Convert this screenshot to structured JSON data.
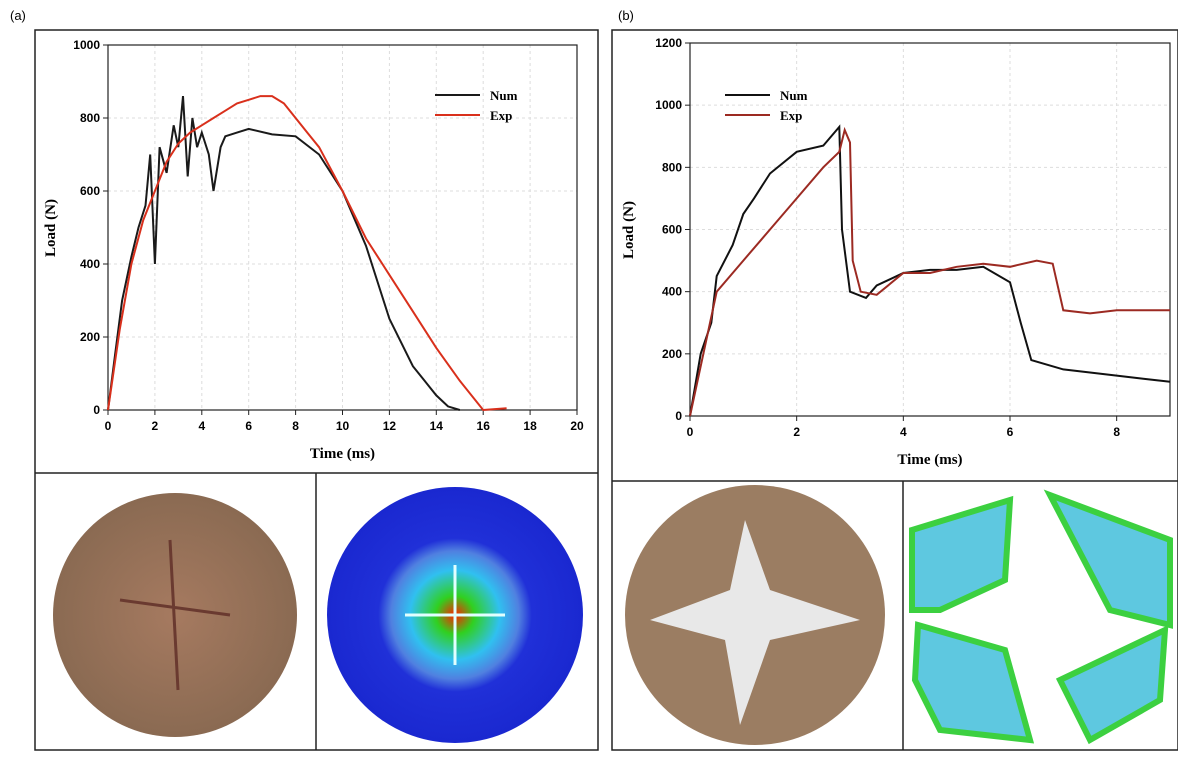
{
  "chart_data": [
    {
      "type": "line",
      "label": "(a)",
      "x_label": "Time (ms)",
      "y_label": "Load (N)",
      "xlim": [
        0,
        20
      ],
      "ylim": [
        0,
        1000
      ],
      "xticks": [
        0,
        2,
        4,
        6,
        8,
        10,
        12,
        14,
        16,
        18,
        20
      ],
      "yticks": [
        0,
        200,
        400,
        600,
        800,
        1000
      ],
      "grid": true,
      "series": [
        {
          "name": "Num",
          "color": "#1a1a1a",
          "x": [
            0,
            0.3,
            0.6,
            1,
            1.3,
            1.6,
            1.8,
            2,
            2.2,
            2.5,
            2.8,
            3,
            3.2,
            3.4,
            3.6,
            3.8,
            4,
            4.3,
            4.5,
            4.8,
            5,
            5.5,
            6,
            7,
            8,
            9,
            10,
            11,
            12,
            13,
            13.5,
            14,
            14.5,
            15
          ],
          "values": [
            0,
            150,
            300,
            420,
            500,
            560,
            700,
            400,
            720,
            650,
            780,
            720,
            860,
            640,
            800,
            720,
            760,
            700,
            600,
            720,
            750,
            760,
            770,
            755,
            750,
            700,
            600,
            450,
            250,
            120,
            80,
            40,
            10,
            0
          ]
        },
        {
          "name": "Exp",
          "color": "#d9301c",
          "x": [
            0,
            0.5,
            1,
            1.5,
            2,
            2.5,
            3,
            3.5,
            4,
            4.5,
            5,
            5.5,
            6,
            6.5,
            7,
            7.5,
            8,
            8.5,
            9,
            10,
            11,
            12,
            13,
            14,
            15,
            16,
            17
          ],
          "values": [
            0,
            220,
            400,
            520,
            600,
            680,
            730,
            760,
            780,
            800,
            820,
            840,
            850,
            860,
            860,
            840,
            800,
            760,
            720,
            600,
            470,
            370,
            270,
            170,
            80,
            0,
            5
          ]
        }
      ]
    },
    {
      "type": "line",
      "label": "(b)",
      "x_label": "Time (ms)",
      "y_label": "Load (N)",
      "xlim": [
        0,
        9
      ],
      "ylim": [
        0,
        1200
      ],
      "xticks": [
        0,
        2,
        4,
        6,
        8
      ],
      "yticks": [
        0,
        200,
        400,
        600,
        800,
        1000,
        1200
      ],
      "grid": true,
      "series": [
        {
          "name": "Num",
          "color": "#111111",
          "x": [
            0,
            0.2,
            0.4,
            0.5,
            0.8,
            1,
            1.2,
            1.5,
            2,
            2.5,
            2.8,
            2.85,
            3,
            3.3,
            3.5,
            4,
            4.5,
            5,
            5.5,
            6,
            6.2,
            6.4,
            7,
            7.5,
            8,
            8.5,
            9
          ],
          "values": [
            0,
            200,
            300,
            450,
            550,
            650,
            700,
            780,
            850,
            870,
            930,
            600,
            400,
            380,
            420,
            460,
            470,
            470,
            480,
            430,
            300,
            180,
            150,
            140,
            130,
            120,
            110
          ]
        },
        {
          "name": "Exp",
          "color": "#9c2a22",
          "x": [
            0,
            0.5,
            1,
            1.5,
            2,
            2.5,
            2.8,
            2.9,
            3,
            3.05,
            3.2,
            3.5,
            4,
            4.5,
            5,
            5.5,
            6,
            6.5,
            6.8,
            7,
            7.5,
            8,
            8.5,
            9
          ],
          "values": [
            0,
            400,
            500,
            600,
            700,
            800,
            850,
            920,
            880,
            500,
            400,
            390,
            460,
            460,
            480,
            490,
            480,
            500,
            490,
            340,
            330,
            340,
            340,
            340
          ]
        }
      ]
    }
  ]
}
